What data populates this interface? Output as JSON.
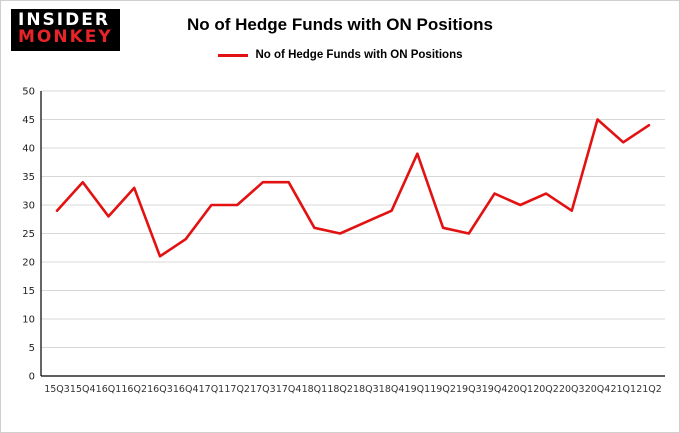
{
  "logo": {
    "line1": "INSIDER",
    "line2": "MONKEY"
  },
  "title": "No of Hedge Funds with ON Positions",
  "legend": {
    "label": "No of Hedge Funds with ON Positions",
    "color": "#e31212"
  },
  "chart_data": {
    "type": "line",
    "title": "No of Hedge Funds with ON Positions",
    "categories": [
      "15Q3",
      "15Q4",
      "16Q1",
      "16Q2",
      "16Q3",
      "16Q4",
      "17Q1",
      "17Q2",
      "17Q3",
      "17Q4",
      "18Q1",
      "18Q2",
      "18Q3",
      "18Q4",
      "19Q1",
      "19Q2",
      "19Q3",
      "19Q4",
      "20Q1",
      "20Q2",
      "20Q3",
      "20Q4",
      "21Q1",
      "21Q2"
    ],
    "values": [
      29,
      34,
      28,
      33,
      21,
      24,
      30,
      30,
      34,
      34,
      26,
      25,
      27,
      29,
      39,
      26,
      25,
      32,
      30,
      32,
      29,
      45,
      41,
      44
    ],
    "series_color": "#e31212",
    "ylim": [
      0,
      50
    ],
    "ytick_step": 5,
    "grid": true,
    "legend_position": "top",
    "xlabel": "",
    "ylabel": ""
  }
}
